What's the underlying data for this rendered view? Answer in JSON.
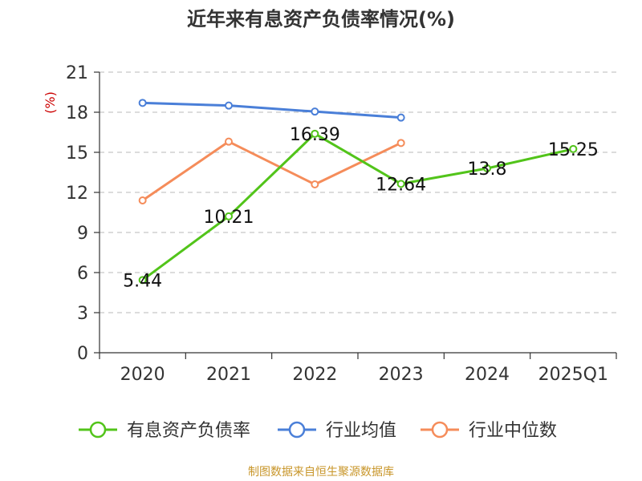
{
  "title": "近年来有息资产负债率情况(%)",
  "footer": "制图数据来自恒生聚源数据库",
  "chart_data": {
    "type": "line",
    "title": "近年来有息资产负债率情况(%)",
    "ylabel": "(%)",
    "xlabel": "",
    "ylim": [
      0,
      21
    ],
    "yticks": [
      0,
      3,
      6,
      9,
      12,
      15,
      18,
      21
    ],
    "categories": [
      "2020",
      "2021",
      "2022",
      "2023",
      "2024",
      "2025Q1"
    ],
    "grid": true,
    "legend_position": "bottom",
    "series": [
      {
        "name": "有息资产负债率",
        "color": "#52c41a",
        "values": [
          5.44,
          10.21,
          16.39,
          12.64,
          13.8,
          15.25
        ],
        "labels": [
          "5.44",
          "10.21",
          "16.39",
          "12.64",
          "13.8",
          "15.25"
        ]
      },
      {
        "name": "行业均值",
        "color": "#4a7fd8",
        "values": [
          18.7,
          18.5,
          18.05,
          17.6,
          null,
          null
        ]
      },
      {
        "name": "行业中位数",
        "color": "#f58c5a",
        "values": [
          11.4,
          15.8,
          12.6,
          15.7,
          null,
          null
        ]
      }
    ]
  }
}
